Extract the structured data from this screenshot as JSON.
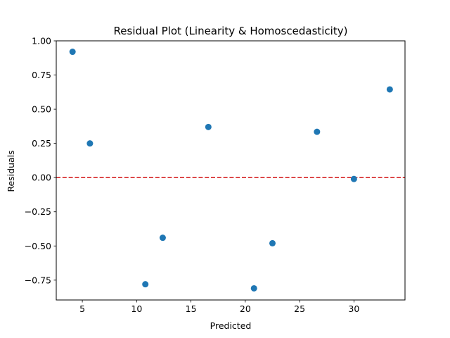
{
  "chart_data": {
    "type": "scatter",
    "title": "Residual Plot (Linearity & Homoscedasticity)",
    "xlabel": "Predicted",
    "ylabel": "Residuals",
    "xlim": [
      2.6,
      34.7
    ],
    "ylim": [
      -0.895,
      1.0
    ],
    "xticks": [
      5,
      10,
      15,
      20,
      25,
      30
    ],
    "yticks": [
      -0.75,
      -0.5,
      -0.25,
      0.0,
      0.25,
      0.5,
      0.75,
      1.0
    ],
    "xtick_labels": [
      "5",
      "10",
      "15",
      "20",
      "25",
      "30"
    ],
    "ytick_labels": [
      "−0.75",
      "−0.50",
      "−0.25",
      "0.00",
      "0.25",
      "0.50",
      "0.75",
      "1.00"
    ],
    "points": {
      "x": [
        4.1,
        5.7,
        10.8,
        12.4,
        16.6,
        20.8,
        22.5,
        26.6,
        30.0,
        33.3
      ],
      "y": [
        0.92,
        0.25,
        -0.78,
        -0.44,
        0.37,
        -0.81,
        -0.48,
        0.335,
        -0.01,
        0.645
      ]
    },
    "reference_line": {
      "y": 0.0,
      "style": "dashed"
    },
    "colors": {
      "points": "#1f77b4",
      "reference_line": "#d62728",
      "axes": "#000000"
    },
    "grid": false,
    "legend": "none"
  }
}
